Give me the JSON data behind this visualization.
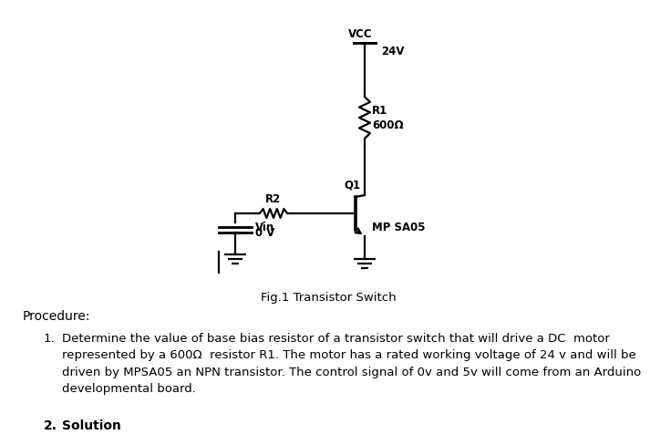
{
  "background_color": "#ffffff",
  "fig_caption": "Fig.1 Transistor Switch",
  "procedure_title": "Procedure:",
  "item1_label": "1.",
  "item1_text": "Determine the value of base bias resistor of a transistor switch that will drive a DC  motor\nrepresented by a 600Ω  resistor R1. The motor has a rated working voltage of 24 v and will be\ndriven by MPSA05 an NPN transistor. The control signal of 0v and 5v will come from an Arduino\ndevelopmental board.",
  "item2_label": "2.",
  "item2_text": "Solution",
  "vcc_label": "VCC",
  "vcc_voltage": "24V",
  "r1_label": "R1",
  "r1_value": "600Ω",
  "r2_label": "R2",
  "q1_label": "Q1",
  "transistor_label": "MP SA05",
  "vin_label": "Vin",
  "vin_value": "0 V",
  "lw": 1.6,
  "font_size_circuit": 8.5,
  "font_size_body": 9.5,
  "font_size_caption": 9.5
}
